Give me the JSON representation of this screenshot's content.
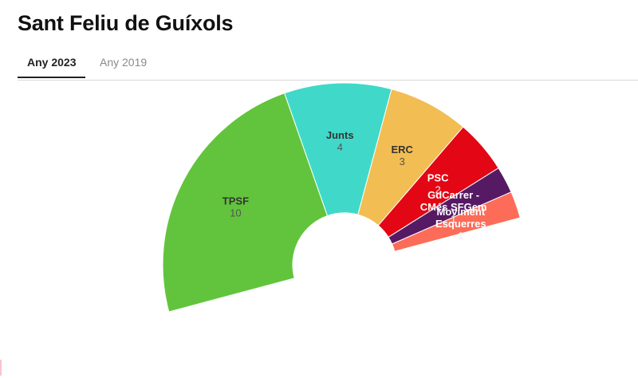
{
  "header": {
    "title": "Sant Feliu de Guíxols"
  },
  "tabs": [
    {
      "label": "Any 2023",
      "active": true
    },
    {
      "label": "Any 2019",
      "active": false
    }
  ],
  "chart_data": {
    "type": "pie",
    "subtype": "parliament-half-donut",
    "total_seats": 21,
    "series": [
      {
        "name": "TPSF",
        "value": 10,
        "color": "#62c43c",
        "label_dark": true
      },
      {
        "name": "Junts",
        "value": 4,
        "color": "#40d9c9",
        "label_dark": true
      },
      {
        "name": "ERC",
        "value": 3,
        "color": "#f2bd52",
        "label_dark": true
      },
      {
        "name": "PSC",
        "value": 2,
        "color": "#e30614",
        "label_dark": false
      },
      {
        "name": "GdCarrer - CMés SFGem",
        "value": 1,
        "color": "#561a64",
        "label_dark": false
      },
      {
        "name": "Moviment Esquerres",
        "value": 1,
        "color": "#fd6c58",
        "label_dark": false
      }
    ]
  }
}
